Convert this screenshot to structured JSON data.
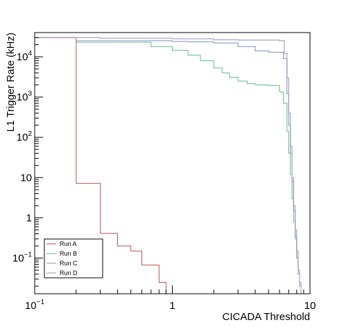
{
  "chart_data": {
    "type": "line",
    "style": "step-histogram",
    "title": "",
    "xlabel": "CICADA Threshold",
    "ylabel": "L1 Trigger Rate (kHz)",
    "x_scale": "log",
    "y_scale": "log",
    "xlim": [
      0.1,
      10
    ],
    "ylim": [
      0.013,
      40000
    ],
    "grid": false,
    "legend_position": "bottom-left",
    "x_ticks": [
      {
        "value": 0.1,
        "base": "10",
        "exp": "−1"
      },
      {
        "value": 1,
        "base": "1",
        "exp": ""
      },
      {
        "value": 10,
        "base": "10",
        "exp": ""
      }
    ],
    "y_ticks": [
      {
        "value": 0.1,
        "base": "10",
        "exp": "−1"
      },
      {
        "value": 1,
        "base": "1",
        "exp": ""
      },
      {
        "value": 10,
        "base": "10",
        "exp": ""
      },
      {
        "value": 100,
        "base": "10",
        "exp": "2"
      },
      {
        "value": 1000,
        "base": "10",
        "exp": "3"
      },
      {
        "value": 10000,
        "base": "10",
        "exp": "4"
      }
    ],
    "series": [
      {
        "name": "Run A",
        "color": "#c0504d",
        "x": [
          0.1,
          0.2,
          0.2,
          0.3,
          0.3,
          0.4,
          0.4,
          0.5,
          0.5,
          0.6,
          0.6,
          0.8,
          0.8,
          0.9,
          0.9
        ],
        "y": [
          30000,
          30000,
          7.2,
          7.2,
          0.41,
          0.41,
          0.2,
          0.2,
          0.15,
          0.15,
          0.067,
          0.067,
          0.025,
          0.025,
          0.013
        ]
      },
      {
        "name": "Run B",
        "color": "#5fba8d",
        "x": [
          0.2,
          0.7,
          1.0,
          1.3,
          1.6,
          2.0,
          2.3,
          2.6,
          3.0,
          3.5,
          4.0,
          5.0,
          6.0,
          6.4,
          6.8,
          7.0,
          7.2,
          7.4,
          7.6,
          7.8,
          8.0,
          8.2,
          8.4,
          8.6
        ],
        "y": [
          23000,
          18000,
          14500,
          11000,
          8000,
          5300,
          4000,
          3100,
          2500,
          2150,
          2000,
          1950,
          1350,
          700,
          140,
          40,
          12,
          3,
          0.8,
          0.3,
          0.1,
          0.05,
          0.025,
          0.013
        ]
      },
      {
        "name": "Run C",
        "color": "#7a8fc4",
        "x": [
          0.2,
          0.8,
          1.0,
          1.3,
          2.0,
          3.0,
          4.0,
          5.0,
          6.0,
          6.4,
          6.8,
          7.0,
          7.2,
          7.4,
          7.6,
          7.8,
          8.0,
          8.2,
          8.4,
          8.6
        ],
        "y": [
          25000,
          25000,
          24000,
          23500,
          22000,
          18000,
          14000,
          13000,
          13000,
          9000,
          1200,
          200,
          40,
          8,
          1.5,
          0.35,
          0.1,
          0.04,
          0.02,
          0.013
        ]
      },
      {
        "name": "Run D",
        "color": "#9b8db8",
        "x": [
          0.1,
          0.3,
          1.0,
          2.0,
          3.0,
          5.0,
          6.0,
          6.5,
          6.8,
          7.0,
          7.2,
          7.4,
          7.6,
          7.8,
          8.0,
          8.2,
          8.4,
          8.6
        ],
        "y": [
          30000,
          29000,
          28000,
          26500,
          26000,
          26000,
          25000,
          12000,
          3000,
          400,
          60,
          10,
          2,
          0.5,
          0.15,
          0.05,
          0.025,
          0.013
        ]
      }
    ]
  }
}
